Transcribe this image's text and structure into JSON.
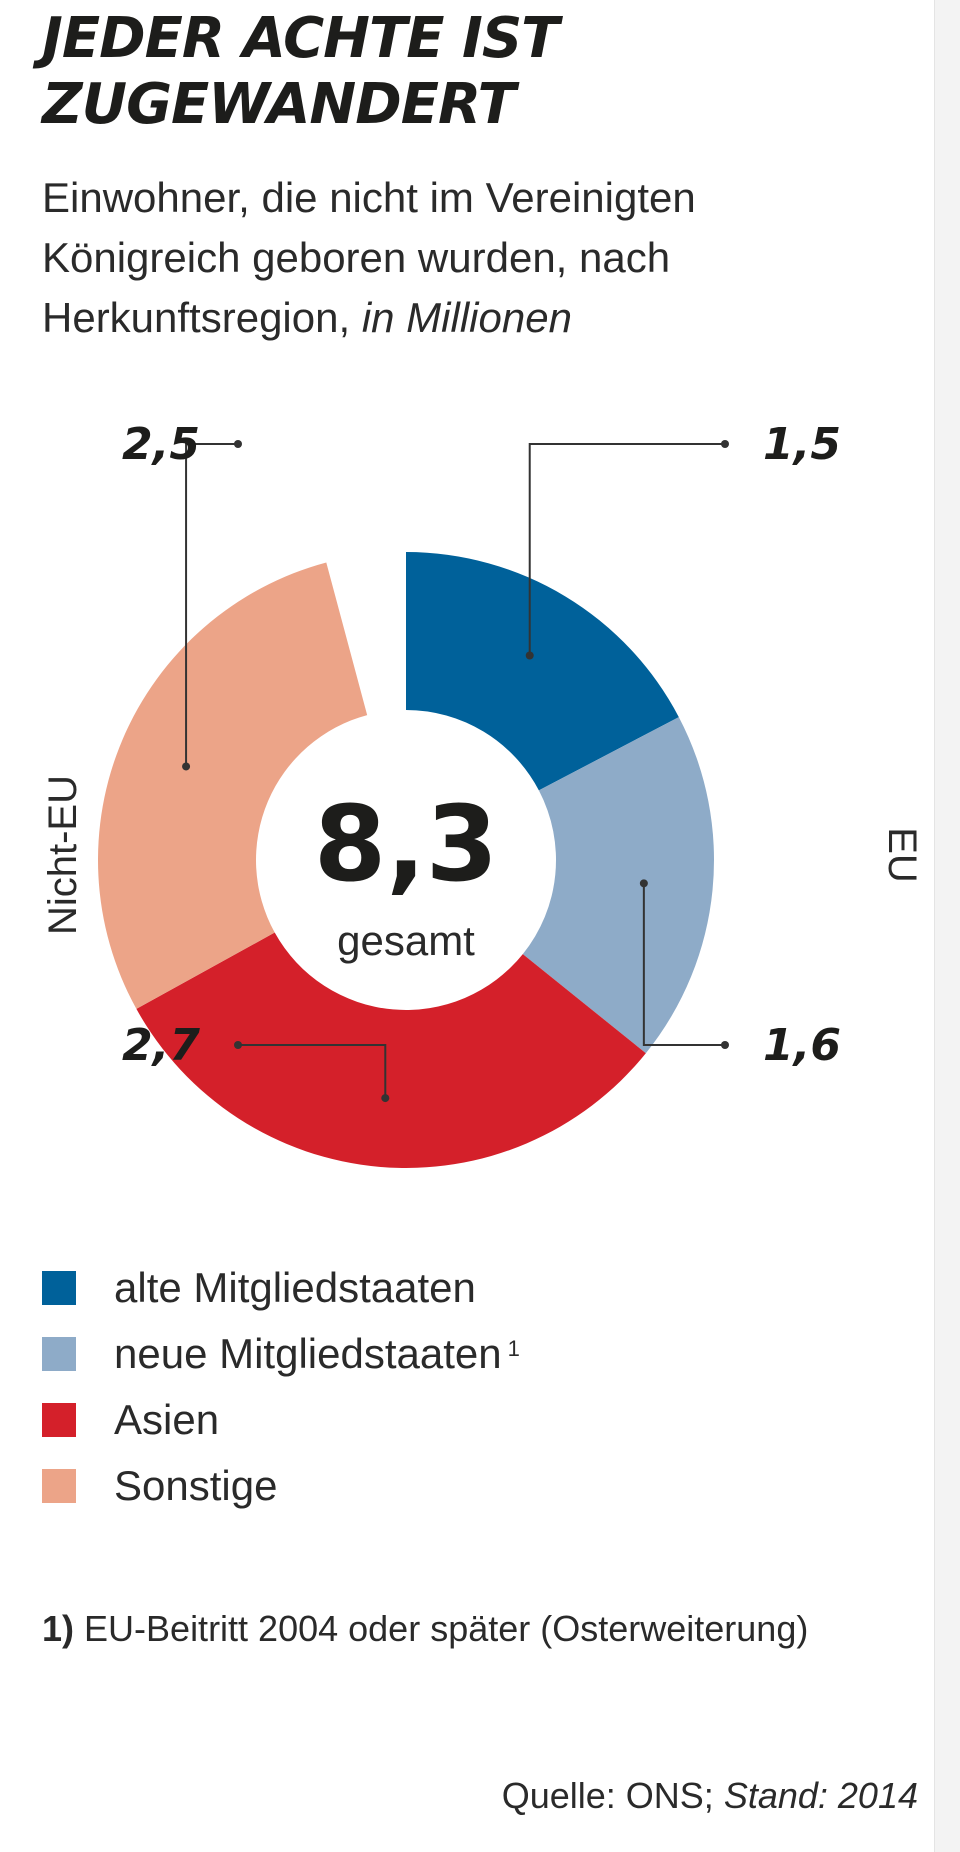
{
  "title": "JEDER ACHTE IST ZUGEWANDERT",
  "subtitle_main": "Einwohner, die nicht im Vereinigten Königreich geboren wurden, nach Herkunftsregion,",
  "subtitle_unit": "in Millionen",
  "chart_data": {
    "type": "donut",
    "total": "8,3",
    "total_label": "gesamt",
    "group_labels": {
      "right": "EU",
      "left": "Nicht-EU"
    },
    "segments": [
      {
        "name": "alte Mitgliedstaaten",
        "value": 1.5,
        "label": "1,5",
        "group": "EU",
        "color": "#00619a"
      },
      {
        "name": "neue Mitgliedstaaten",
        "value": 1.6,
        "label": "1,6",
        "group": "EU",
        "color": "#8eabc8"
      },
      {
        "name": "Asien",
        "value": 2.7,
        "label": "2,7",
        "group": "Nicht-EU",
        "color": "#d4202a"
      },
      {
        "name": "Sonstige",
        "value": 2.5,
        "label": "2,5",
        "group": "Nicht-EU",
        "color": "#eca488"
      }
    ]
  },
  "legend": [
    {
      "label": "alte Mitgliedstaaten",
      "color": "#00619a",
      "footnote_ref": ""
    },
    {
      "label": "neue Mitgliedstaaten",
      "color": "#8eabc8",
      "footnote_ref": "1"
    },
    {
      "label": "Asien",
      "color": "#d4202a",
      "footnote_ref": ""
    },
    {
      "label": "Sonstige",
      "color": "#eca488",
      "footnote_ref": ""
    }
  ],
  "footnote": {
    "marker": "1)",
    "text": "EU-Beitritt 2004 oder später (Osterweiterung)"
  },
  "source": {
    "label": "Quelle: ONS;",
    "stand": "Stand: 2014"
  }
}
